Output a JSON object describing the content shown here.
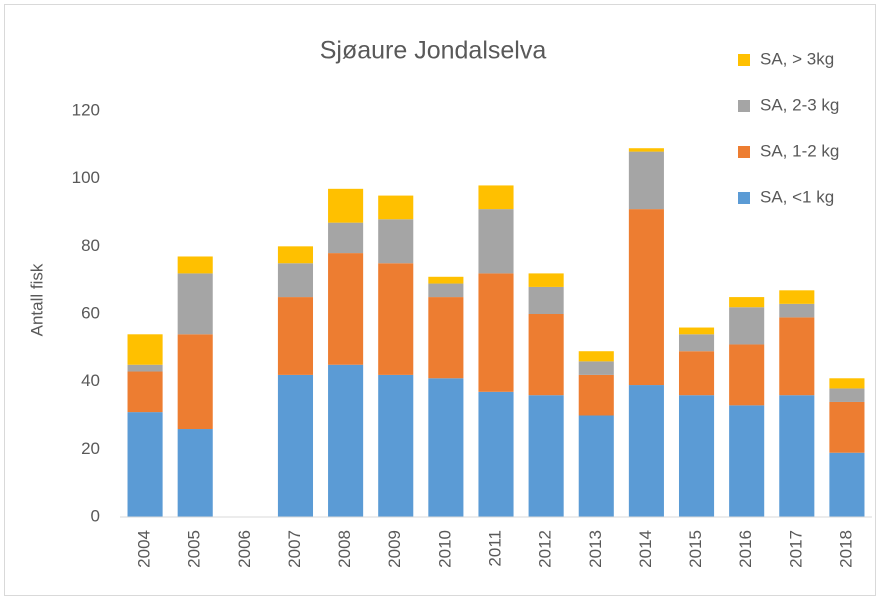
{
  "chart_data": {
    "type": "stacked_bar",
    "title": "Sjøaure Jondalselva",
    "y_label": "Antall fisk",
    "categories": [
      "2004",
      "2005",
      "2006",
      "2007",
      "2008",
      "2009",
      "2010",
      "2011",
      "2012",
      "2013",
      "2014",
      "2015",
      "2016",
      "2017",
      "2018"
    ],
    "series": [
      {
        "name": "SA, <1 kg",
        "color": "#5b9bd5",
        "values": [
          31,
          26,
          0,
          42,
          45,
          42,
          41,
          37,
          36,
          30,
          39,
          36,
          33,
          36,
          19
        ]
      },
      {
        "name": "SA, 1-2 kg",
        "color": "#ed7d31",
        "values": [
          12,
          28,
          0,
          23,
          33,
          33,
          24,
          35,
          24,
          12,
          52,
          13,
          18,
          23,
          15
        ]
      },
      {
        "name": "SA, 2-3 kg",
        "color": "#a5a5a5",
        "values": [
          2,
          18,
          0,
          10,
          9,
          13,
          4,
          19,
          8,
          4,
          17,
          5,
          11,
          4,
          4
        ]
      },
      {
        "name": "SA, > 3kg",
        "color": "#ffc000",
        "values": [
          9,
          5,
          0,
          5,
          10,
          7,
          2,
          7,
          4,
          3,
          1,
          2,
          3,
          4,
          3
        ]
      }
    ],
    "ylim": [
      0,
      120
    ],
    "yticks": [
      0,
      20,
      40,
      60,
      80,
      100,
      120
    ],
    "grid": false,
    "legend": "upper right"
  }
}
